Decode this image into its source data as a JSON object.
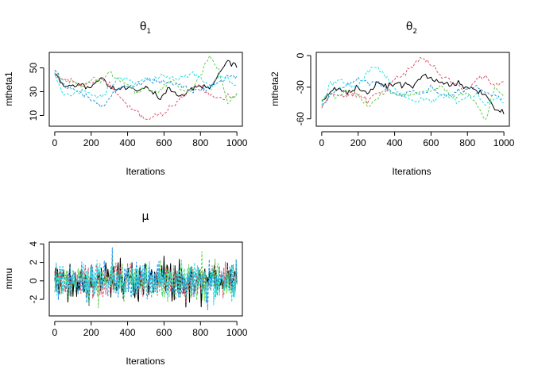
{
  "chart_data": [
    {
      "type": "line",
      "id": "theta1",
      "title": "θ",
      "title_subscript": "1",
      "xlabel": "Iterations",
      "ylabel": "mtheta1",
      "xlim": [
        -30,
        1030
      ],
      "ylim": [
        1,
        63
      ],
      "xticks": [
        0,
        200,
        400,
        600,
        800,
        1000
      ],
      "yticks": [
        10,
        30,
        50
      ],
      "grid": false,
      "legend": "none",
      "x": {
        "start": 0,
        "end": 1000,
        "step": 10
      },
      "series": [
        {
          "color": "#000000",
          "dash": "solid",
          "anchors": [
            [
              0,
              46
            ],
            [
              50,
              33
            ],
            [
              100,
              35
            ],
            [
              150,
              36
            ],
            [
              200,
              34
            ],
            [
              250,
              41
            ],
            [
              300,
              34
            ],
            [
              350,
              31
            ],
            [
              400,
              35
            ],
            [
              450,
              33
            ],
            [
              500,
              33
            ],
            [
              550,
              28
            ],
            [
              580,
              24
            ],
            [
              620,
              33
            ],
            [
              660,
              29
            ],
            [
              700,
              26
            ],
            [
              750,
              33
            ],
            [
              800,
              34
            ],
            [
              850,
              33
            ],
            [
              900,
              44
            ],
            [
              950,
              55
            ],
            [
              1000,
              53
            ]
          ]
        },
        {
          "color": "#DF536B",
          "dash": "dashed",
          "anchors": [
            [
              0,
              45
            ],
            [
              50,
              40
            ],
            [
              100,
              38
            ],
            [
              150,
              35
            ],
            [
              200,
              38
            ],
            [
              250,
              40
            ],
            [
              300,
              36
            ],
            [
              350,
              26
            ],
            [
              400,
              18
            ],
            [
              450,
              14
            ],
            [
              500,
              7
            ],
            [
              550,
              9
            ],
            [
              600,
              13
            ],
            [
              650,
              19
            ],
            [
              700,
              27
            ],
            [
              750,
              32
            ],
            [
              800,
              35
            ],
            [
              850,
              27
            ],
            [
              900,
              24
            ],
            [
              950,
              26
            ],
            [
              1000,
              26
            ]
          ]
        },
        {
          "color": "#61D04F",
          "dash": "dashed",
          "anchors": [
            [
              0,
              47
            ],
            [
              50,
              40
            ],
            [
              100,
              37
            ],
            [
              150,
              33
            ],
            [
              200,
              42
            ],
            [
              250,
              38
            ],
            [
              300,
              47
            ],
            [
              350,
              40
            ],
            [
              400,
              36
            ],
            [
              450,
              29
            ],
            [
              500,
              34
            ],
            [
              550,
              28
            ],
            [
              600,
              35
            ],
            [
              650,
              39
            ],
            [
              700,
              29
            ],
            [
              750,
              30
            ],
            [
              800,
              45
            ],
            [
              850,
              60
            ],
            [
              900,
              48
            ],
            [
              950,
              19
            ],
            [
              1000,
              30
            ]
          ]
        },
        {
          "color": "#2297E6",
          "dash": "dashed",
          "anchors": [
            [
              0,
              49
            ],
            [
              50,
              36
            ],
            [
              100,
              33
            ],
            [
              150,
              28
            ],
            [
              200,
              24
            ],
            [
              250,
              17
            ],
            [
              300,
              24
            ],
            [
              350,
              32
            ],
            [
              400,
              34
            ],
            [
              450,
              36
            ],
            [
              500,
              40
            ],
            [
              550,
              38
            ],
            [
              600,
              39
            ],
            [
              650,
              37
            ],
            [
              700,
              34
            ],
            [
              750,
              31
            ],
            [
              800,
              32
            ],
            [
              850,
              34
            ],
            [
              900,
              37
            ],
            [
              950,
              42
            ],
            [
              1000,
              43
            ]
          ]
        },
        {
          "color": "#28E2E5",
          "dash": "dashed",
          "anchors": [
            [
              0,
              46
            ],
            [
              50,
              27
            ],
            [
              100,
              29
            ],
            [
              150,
              31
            ],
            [
              200,
              28
            ],
            [
              250,
              24
            ],
            [
              300,
              33
            ],
            [
              350,
              42
            ],
            [
              400,
              40
            ],
            [
              450,
              38
            ],
            [
              500,
              42
            ],
            [
              550,
              40
            ],
            [
              600,
              44
            ],
            [
              650,
              41
            ],
            [
              700,
              42
            ],
            [
              750,
              45
            ],
            [
              800,
              43
            ],
            [
              850,
              32
            ],
            [
              900,
              43
            ],
            [
              950,
              40
            ],
            [
              1000,
              35
            ]
          ]
        }
      ]
    },
    {
      "type": "line",
      "id": "theta2",
      "title": "θ",
      "title_subscript": "2",
      "xlabel": "Iterations",
      "ylabel": "mtheta2",
      "xlim": [
        -30,
        1030
      ],
      "ylim": [
        -67,
        3
      ],
      "xticks": [
        0,
        200,
        400,
        600,
        800,
        1000
      ],
      "yticks": [
        -60,
        -30,
        0
      ],
      "grid": false,
      "legend": "none",
      "x": {
        "start": 0,
        "end": 1000,
        "step": 10
      },
      "series": [
        {
          "color": "#000000",
          "dash": "solid",
          "anchors": [
            [
              0,
              -46
            ],
            [
              50,
              -33
            ],
            [
              100,
              -33
            ],
            [
              150,
              -35
            ],
            [
              200,
              -30
            ],
            [
              250,
              -36
            ],
            [
              300,
              -27
            ],
            [
              350,
              -29
            ],
            [
              400,
              -25
            ],
            [
              450,
              -27
            ],
            [
              500,
              -30
            ],
            [
              550,
              -18
            ],
            [
              600,
              -23
            ],
            [
              650,
              -25
            ],
            [
              700,
              -28
            ],
            [
              750,
              -26
            ],
            [
              800,
              -31
            ],
            [
              850,
              -32
            ],
            [
              900,
              -38
            ],
            [
              950,
              -50
            ],
            [
              1000,
              -55
            ]
          ]
        },
        {
          "color": "#DF536B",
          "dash": "dashed",
          "anchors": [
            [
              0,
              -47
            ],
            [
              50,
              -37
            ],
            [
              100,
              -39
            ],
            [
              150,
              -36
            ],
            [
              200,
              -38
            ],
            [
              250,
              -42
            ],
            [
              300,
              -33
            ],
            [
              350,
              -36
            ],
            [
              400,
              -22
            ],
            [
              450,
              -17
            ],
            [
              500,
              -10
            ],
            [
              550,
              -2
            ],
            [
              600,
              -8
            ],
            [
              650,
              -18
            ],
            [
              700,
              -23
            ],
            [
              750,
              -28
            ],
            [
              800,
              -34
            ],
            [
              850,
              -20
            ],
            [
              900,
              -22
            ],
            [
              950,
              -28
            ],
            [
              1000,
              -26
            ]
          ]
        },
        {
          "color": "#61D04F",
          "dash": "dashed",
          "anchors": [
            [
              0,
              -44
            ],
            [
              50,
              -36
            ],
            [
              100,
              -37
            ],
            [
              150,
              -33
            ],
            [
              200,
              -38
            ],
            [
              250,
              -48
            ],
            [
              300,
              -41
            ],
            [
              350,
              -33
            ],
            [
              400,
              -36
            ],
            [
              450,
              -38
            ],
            [
              500,
              -36
            ],
            [
              550,
              -34
            ],
            [
              600,
              -33
            ],
            [
              650,
              -29
            ],
            [
              700,
              -37
            ],
            [
              750,
              -39
            ],
            [
              800,
              -36
            ],
            [
              850,
              -46
            ],
            [
              900,
              -62
            ],
            [
              950,
              -30
            ],
            [
              1000,
              -38
            ]
          ]
        },
        {
          "color": "#2297E6",
          "dash": "dashed",
          "anchors": [
            [
              0,
              -50
            ],
            [
              50,
              -36
            ],
            [
              100,
              -31
            ],
            [
              150,
              -28
            ],
            [
              200,
              -22
            ],
            [
              250,
              -27
            ],
            [
              300,
              -25
            ],
            [
              350,
              -30
            ],
            [
              400,
              -36
            ],
            [
              450,
              -37
            ],
            [
              500,
              -34
            ],
            [
              550,
              -36
            ],
            [
              600,
              -30
            ],
            [
              650,
              -36
            ],
            [
              700,
              -38
            ],
            [
              750,
              -35
            ],
            [
              800,
              -32
            ],
            [
              850,
              -30
            ],
            [
              900,
              -36
            ],
            [
              950,
              -38
            ],
            [
              1000,
              -41
            ]
          ]
        },
        {
          "color": "#28E2E5",
          "dash": "dashed",
          "anchors": [
            [
              0,
              -44
            ],
            [
              50,
              -27
            ],
            [
              100,
              -22
            ],
            [
              150,
              -29
            ],
            [
              200,
              -30
            ],
            [
              250,
              -16
            ],
            [
              300,
              -11
            ],
            [
              350,
              -20
            ],
            [
              400,
              -33
            ],
            [
              450,
              -38
            ],
            [
              500,
              -44
            ],
            [
              550,
              -41
            ],
            [
              600,
              -43
            ],
            [
              650,
              -38
            ],
            [
              700,
              -40
            ],
            [
              750,
              -45
            ],
            [
              800,
              -38
            ],
            [
              850,
              -37
            ],
            [
              900,
              -47
            ],
            [
              950,
              -41
            ],
            [
              1000,
              -45
            ]
          ]
        }
      ]
    },
    {
      "type": "line",
      "id": "mu",
      "title": "μ",
      "xlabel": "Iterations",
      "ylabel": "mmu",
      "xlim": [
        -30,
        1030
      ],
      "ylim": [
        -3.8,
        4.2
      ],
      "xticks": [
        0,
        200,
        400,
        600,
        800,
        1000
      ],
      "yticks": [
        -2,
        0,
        2,
        4
      ],
      "grid": false,
      "legend": "none",
      "noise": {
        "amplitude_sd": 1,
        "min": -3.5,
        "max": 3.8,
        "points_per_series": 250
      },
      "series": [
        {
          "color": "#000000",
          "dash": "solid"
        },
        {
          "color": "#DF536B",
          "dash": "dashed"
        },
        {
          "color": "#61D04F",
          "dash": "dashed"
        },
        {
          "color": "#2297E6",
          "dash": "dashed"
        },
        {
          "color": "#28E2E5",
          "dash": "dashed"
        }
      ]
    }
  ]
}
